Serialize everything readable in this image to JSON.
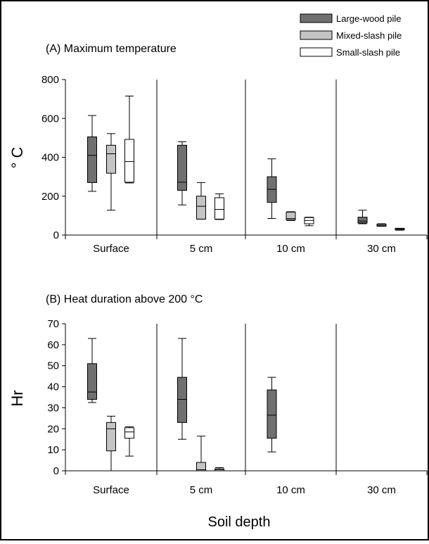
{
  "figure": {
    "xlabel": "Soil depth",
    "legend": {
      "placement": "top-right",
      "items": [
        {
          "label": "Large-wood pile",
          "color": "#707070"
        },
        {
          "label": "Mixed-slash pile",
          "color": "#c4c4c4"
        },
        {
          "label": "Small-slash pile",
          "color": "#ffffff"
        }
      ]
    }
  },
  "chart_data": [
    {
      "type": "boxplot",
      "panel_label": "(A)",
      "title": "(A)  Maximum temperature",
      "ylabel": "° C",
      "ylim": [
        0,
        800
      ],
      "yticks": [
        0,
        200,
        400,
        600,
        800
      ],
      "categories": [
        "Surface",
        "5 cm",
        "10 cm",
        "30 cm"
      ],
      "series": [
        {
          "name": "Large-wood pile",
          "color": "#707070",
          "boxes": [
            {
              "min": 225,
              "q1": 270,
              "median": 410,
              "q3": 505,
              "max": 615
            },
            {
              "min": 155,
              "q1": 230,
              "median": 272,
              "q3": 462,
              "max": 480
            },
            {
              "min": 85,
              "q1": 168,
              "median": 235,
              "q3": 300,
              "max": 392
            },
            {
              "min": 58,
              "q1": 62,
              "median": 72,
              "q3": 92,
              "max": 128
            }
          ]
        },
        {
          "name": "Mixed-slash pile",
          "color": "#c4c4c4",
          "boxes": [
            {
              "min": 128,
              "q1": 318,
              "median": 418,
              "q3": 462,
              "max": 522
            },
            {
              "min": 82,
              "q1": 82,
              "median": 148,
              "q3": 200,
              "max": 270
            },
            {
              "min": 75,
              "q1": 78,
              "median": 85,
              "q3": 118,
              "max": 120
            },
            {
              "min": 45,
              "q1": 46,
              "median": 50,
              "q3": 56,
              "max": 58
            }
          ]
        },
        {
          "name": "Small-slash pile",
          "color": "#ffffff",
          "boxes": [
            {
              "min": 268,
              "q1": 272,
              "median": 378,
              "q3": 492,
              "max": 715
            },
            {
              "min": 80,
              "q1": 82,
              "median": 132,
              "q3": 192,
              "max": 212
            },
            {
              "min": 48,
              "q1": 58,
              "median": 75,
              "q3": 90,
              "max": 92
            },
            {
              "min": 25,
              "q1": 27,
              "median": 30,
              "q3": 34,
              "max": 35
            }
          ]
        }
      ]
    },
    {
      "type": "boxplot",
      "panel_label": "(B)",
      "title": "(B)  Heat duration above 200 °C",
      "ylabel": "Hr",
      "ylim": [
        0,
        70
      ],
      "yticks": [
        0,
        10,
        20,
        30,
        40,
        50,
        60,
        70
      ],
      "categories": [
        "Surface",
        "5 cm",
        "10 cm",
        "30 cm"
      ],
      "series": [
        {
          "name": "Large-wood pile",
          "color": "#707070",
          "boxes": [
            {
              "min": 32.5,
              "q1": 34,
              "median": 37.5,
              "q3": 51,
              "max": 63
            },
            {
              "min": 15,
              "q1": 23,
              "median": 34,
              "q3": 44.5,
              "max": 63
            },
            {
              "min": 9,
              "q1": 15.5,
              "median": 26.5,
              "q3": 38.5,
              "max": 44.5
            },
            {
              "min": 0,
              "q1": 0,
              "median": 0,
              "q3": 0,
              "max": 0
            }
          ]
        },
        {
          "name": "Mixed-slash pile",
          "color": "#c4c4c4",
          "boxes": [
            {
              "min": 0,
              "q1": 9.5,
              "median": 20,
              "q3": 23,
              "max": 26
            },
            {
              "min": 0,
              "q1": 0,
              "median": 0.5,
              "q3": 4,
              "max": 16.5
            },
            {
              "min": 0,
              "q1": 0,
              "median": 0,
              "q3": 0,
              "max": 0
            },
            {
              "min": 0,
              "q1": 0,
              "median": 0,
              "q3": 0,
              "max": 0
            }
          ]
        },
        {
          "name": "Small-slash pile",
          "color": "#ffffff",
          "boxes": [
            {
              "min": 7,
              "q1": 15.5,
              "median": 18.5,
              "q3": 20.5,
              "max": 21
            },
            {
              "min": 0,
              "q1": 0,
              "median": 0.5,
              "q3": 1,
              "max": 1.5
            },
            {
              "min": 0,
              "q1": 0,
              "median": 0,
              "q3": 0,
              "max": 0
            },
            {
              "min": 0,
              "q1": 0,
              "median": 0,
              "q3": 0,
              "max": 0
            }
          ]
        }
      ]
    }
  ]
}
